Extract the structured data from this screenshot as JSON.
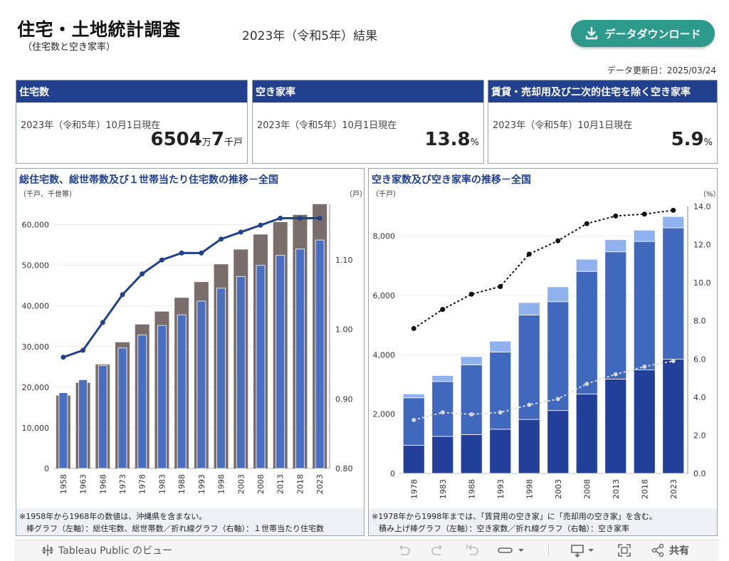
{
  "header": {
    "title": "住宅・土地統計調査",
    "subtitle": "（住宅数と空き家率）",
    "year_heading": "2023年（令和5年）結果",
    "download_label": "データダウンロード",
    "update_date": "データ更新日：2025/03/24"
  },
  "kpis": [
    {
      "title": "住宅数",
      "date": "2023年（令和5年）10月1日現在",
      "value_main": "6504",
      "unit1": "万",
      "value_sub": "7",
      "unit2": "千戸"
    },
    {
      "title": "空き家率",
      "date": "2023年（令和5年）10月1日現在",
      "value_main": "13.8",
      "unit1": "%"
    },
    {
      "title": "賃貸・売却用及び二次的住宅を除く空き家率",
      "date": "2023年（令和5年）10月1日現在",
      "value_main": "5.9",
      "unit1": "%"
    }
  ],
  "notes": {
    "left_line1": "※1958年から1968年の数値は、沖縄県を含まない。",
    "left_line2": "棒グラフ（左軸）：総住宅数、総世帯数／折れ線グラフ（右軸）：１世帯当たり住宅数",
    "right_line1": "※1978年から1998年までは、「賃貸用の空き家」に「売却用の空き家」を含む。",
    "right_line2": "積み上げ棒グラフ（左軸）：空き家数／折れ線グラフ（右軸）：空き家率"
  },
  "footer": {
    "tableau_label": "Tableau Public のビュー",
    "share_label": "共有"
  },
  "colors": {
    "navy": "#21408d",
    "teal": "#2e9a8c",
    "grey_bar": "#7a6e6c",
    "blue_bar": "#4a6fc0",
    "stack_dark": "#22409a",
    "stack_mid": "#4068bd",
    "stack_top": "#8fb1ee"
  },
  "chart_data": [
    {
      "type": "bar",
      "title": "総住宅数、総世帯数及び１世帯当たり住宅数の推移－全国",
      "ylabel": "（千戸、千世帯）",
      "y2label": "（戸）",
      "ylim": [
        0,
        65000
      ],
      "y2lim": [
        0.8,
        1.18
      ],
      "yticks": [
        0,
        10000,
        20000,
        30000,
        40000,
        50000,
        60000
      ],
      "ytick_labels": [
        "0",
        "10,000",
        "20,000",
        "30,000",
        "40,000",
        "50,000",
        "60,000"
      ],
      "y2ticks": [
        0.8,
        0.9,
        1.0,
        1.1
      ],
      "y2tick_labels": [
        "0.80",
        "0.90",
        "1.00",
        "1.10"
      ],
      "categories": [
        "1958",
        "1963",
        "1968",
        "1973",
        "1978",
        "1983",
        "1988",
        "1993",
        "1998",
        "2003",
        "2008",
        "2013",
        "2018",
        "2023"
      ],
      "series": [
        {
          "name": "総住宅数",
          "kind": "bar",
          "values": [
            17934,
            21090,
            25591,
            31059,
            35451,
            38607,
            42007,
            45879,
            50246,
            53891,
            57586,
            60629,
            62407,
            65047
          ]
        },
        {
          "name": "総世帯数",
          "kind": "bar",
          "values": [
            18647,
            21821,
            25320,
            29651,
            32835,
            35197,
            37812,
            41159,
            44360,
            47255,
            49973,
            52453,
            54001,
            56215
          ]
        },
        {
          "name": "１世帯当たり住宅数",
          "kind": "line",
          "axis": "right",
          "values": [
            0.96,
            0.97,
            1.01,
            1.05,
            1.08,
            1.1,
            1.11,
            1.11,
            1.13,
            1.14,
            1.15,
            1.16,
            1.16,
            1.16
          ]
        }
      ]
    },
    {
      "type": "bar",
      "stacked": true,
      "title": "空き家数及び空き家率の推移－全国",
      "ylabel": "（千戸）",
      "y2label": "（%）",
      "ylim": [
        0,
        9000
      ],
      "y2lim": [
        0,
        14
      ],
      "yticks": [
        0,
        2000,
        4000,
        6000,
        8000
      ],
      "ytick_labels": [
        "0",
        "2,000",
        "4,000",
        "6,000",
        "8,000"
      ],
      "y2ticks": [
        0,
        2,
        4,
        6,
        8,
        10,
        12,
        14
      ],
      "y2tick_labels": [
        "0.0",
        "2.0",
        "4.0",
        "6.0",
        "8.0",
        "10.0",
        "12.0",
        "14.0"
      ],
      "categories": [
        "1978",
        "1983",
        "1988",
        "1993",
        "1998",
        "2003",
        "2008",
        "2013",
        "2018",
        "2023"
      ],
      "series": [
        {
          "name": "賃貸・売却用及び二次的住宅を除く空き家",
          "kind": "stack",
          "values": [
            950,
            1250,
            1310,
            1490,
            1820,
            2120,
            2680,
            3180,
            3490,
            3850
          ]
        },
        {
          "name": "賃貸用・売却用の空き家",
          "kind": "stack",
          "values": [
            1600,
            1850,
            2350,
            2600,
            3520,
            3670,
            4130,
            4290,
            4330,
            4430
          ]
        },
        {
          "name": "二次的住宅",
          "kind": "stack",
          "values": [
            130,
            200,
            280,
            370,
            420,
            500,
            410,
            410,
            380,
            380
          ]
        },
        {
          "name": "空き家率",
          "kind": "line",
          "axis": "right",
          "style": "dotted-black",
          "values": [
            7.6,
            8.6,
            9.4,
            9.8,
            11.5,
            12.2,
            13.1,
            13.5,
            13.6,
            13.8
          ]
        },
        {
          "name": "賃貸・売却用及び二次的住宅を除く空き家率",
          "kind": "line",
          "axis": "right",
          "style": "dotted-grey",
          "values": [
            2.8,
            3.2,
            3.1,
            3.2,
            3.6,
            3.9,
            4.7,
            5.2,
            5.6,
            5.9
          ]
        }
      ]
    }
  ]
}
